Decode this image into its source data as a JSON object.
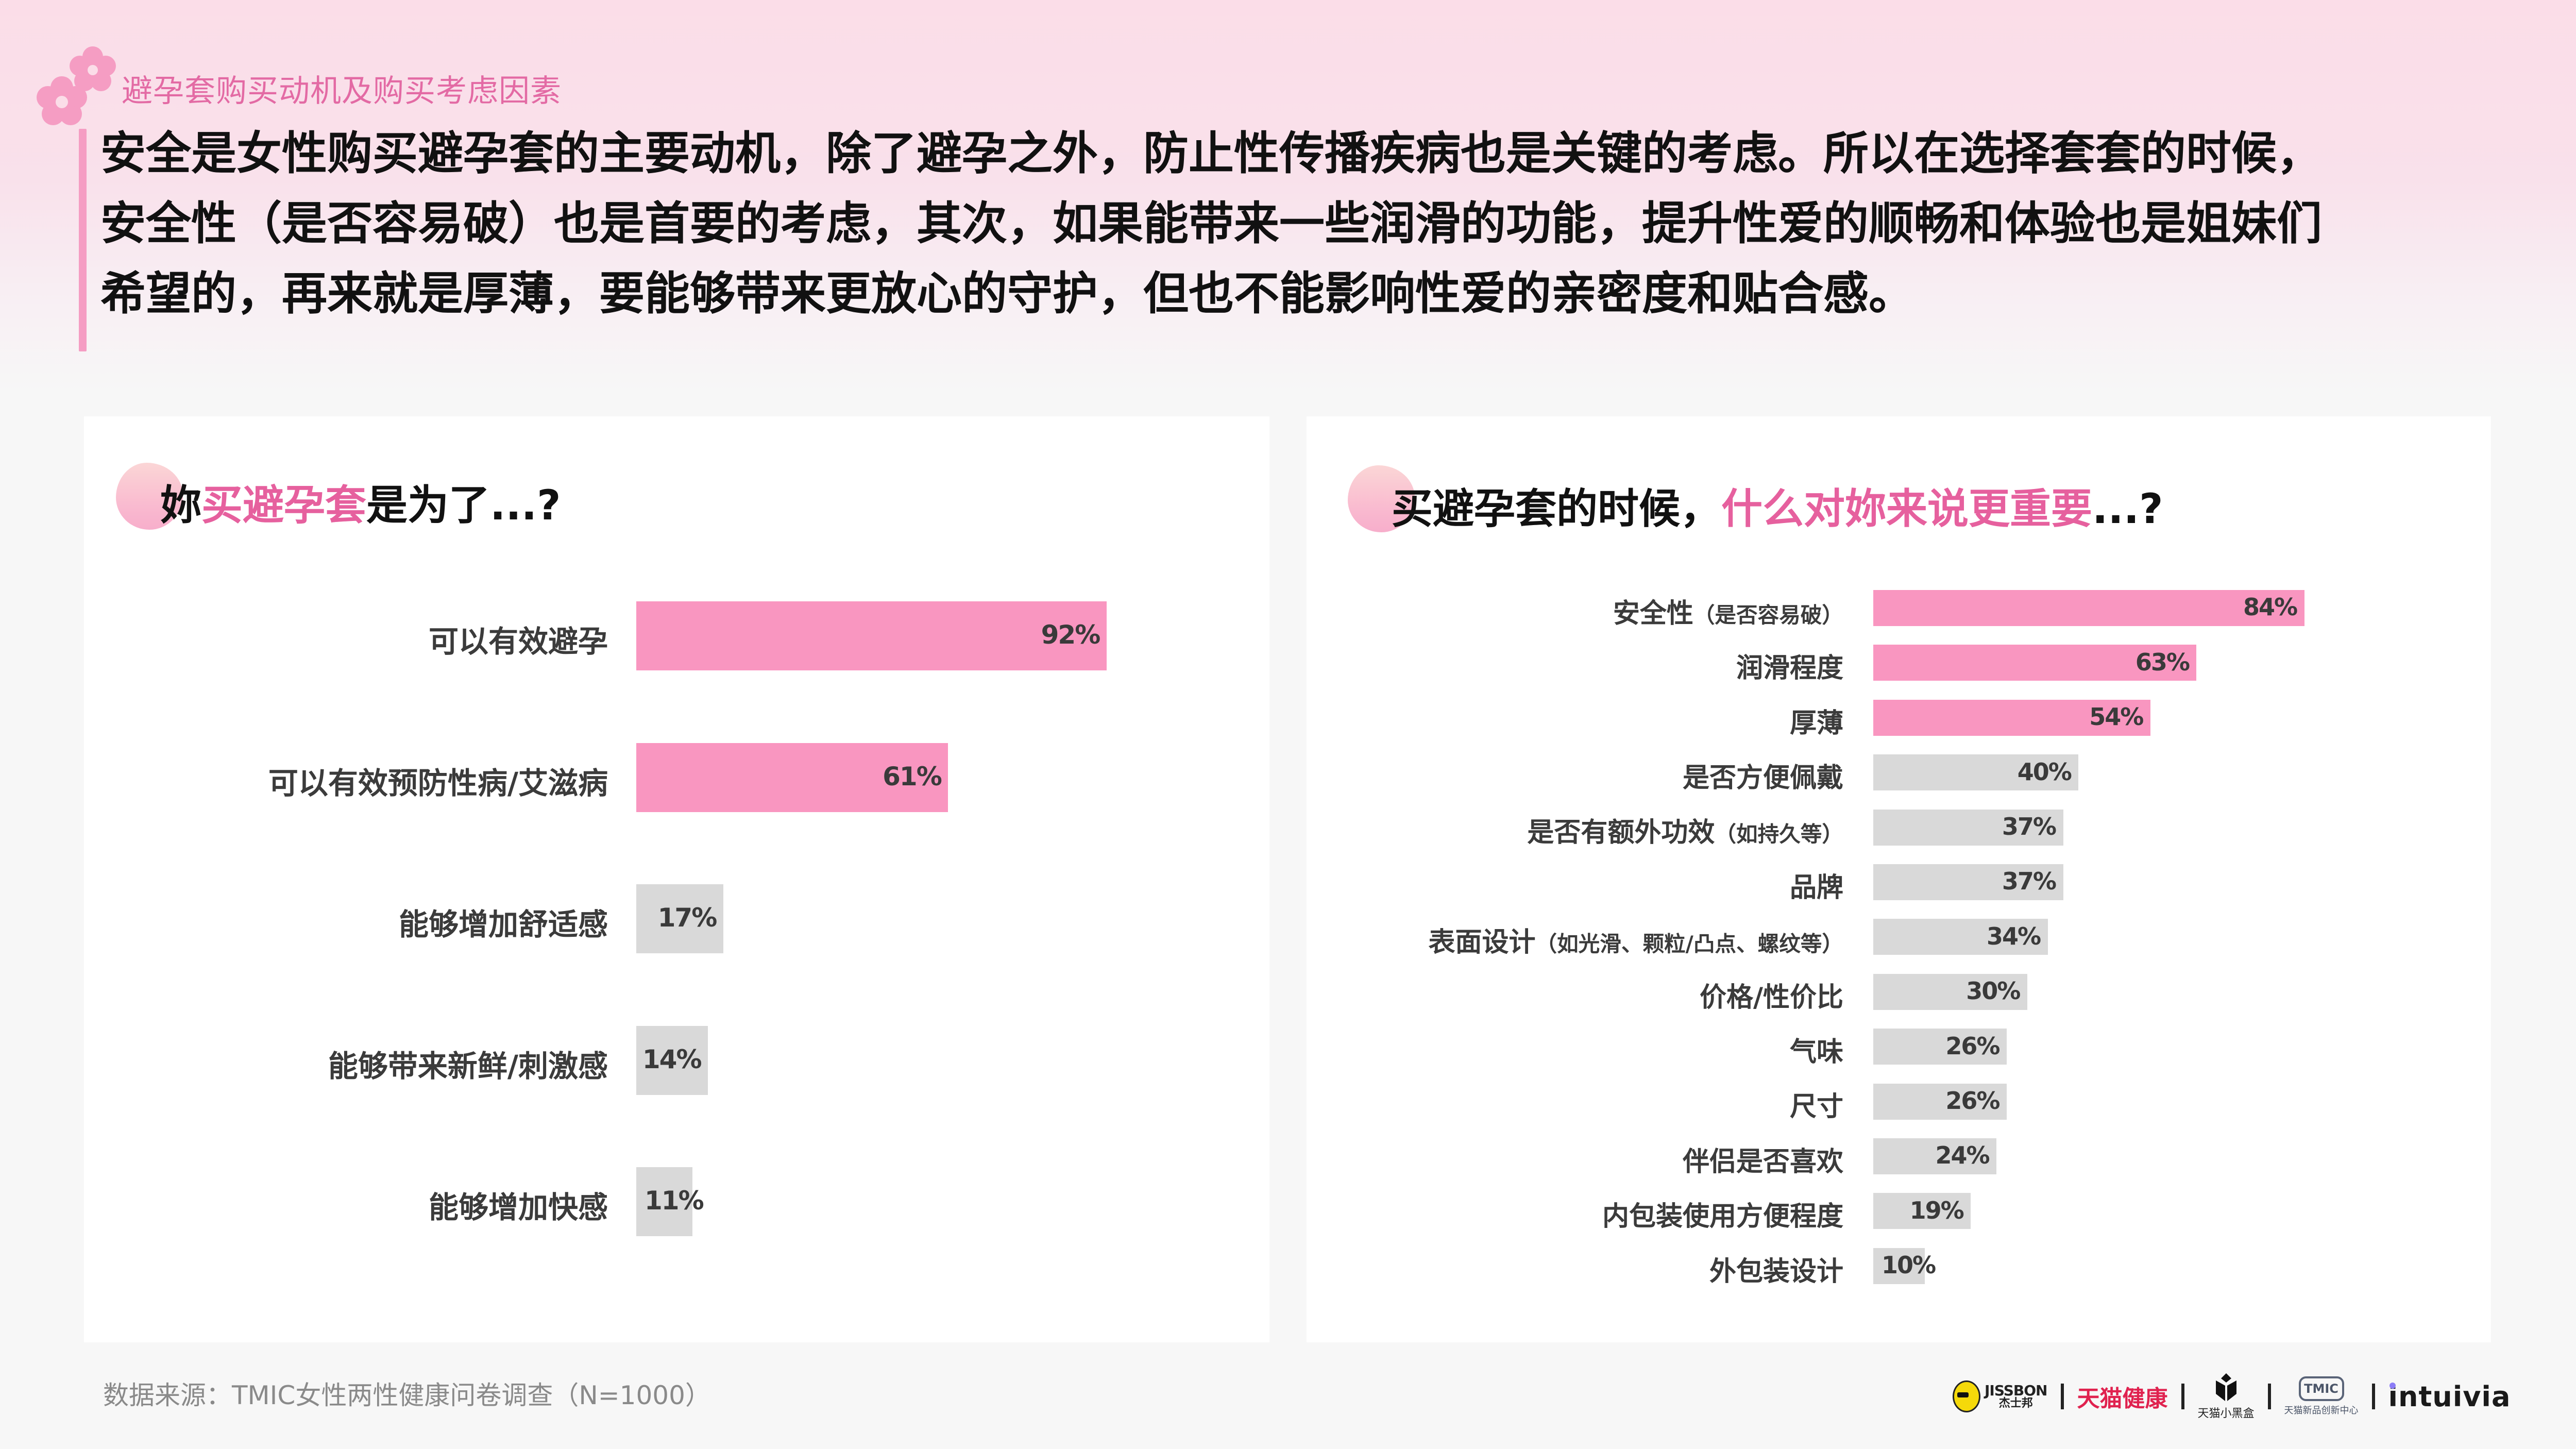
{
  "header": {
    "section_label": "避孕套购买动机及购买考虑因素",
    "headline_lines": [
      "安全是女性购买避孕套的主要动机，除了避孕之外，防止性传播疾病也是关键的考虑。所以在选择套套的时候，",
      "安全性（是否容易破）也是首要的考虑，其次，如果能带来一些润滑的功能，提升性爱的顺畅和体验也是姐妹们",
      "希望的，再来就是厚薄，要能够带来更放心的守护，但也不能影响性爱的亲密度和贴合感。"
    ],
    "decor_icon": "pink-flower-icon"
  },
  "left_chart": {
    "title_parts": {
      "pre": "妳",
      "highlight": "买避孕套",
      "post": "是为了...?"
    }
  },
  "right_chart": {
    "title_parts": {
      "pre": "买避孕套的时候，",
      "highlight": "什么对妳来说更重要",
      "post": "...?"
    }
  },
  "footer": {
    "source": "数据来源：TMIC女性两性健康问卷调查（N=1000）",
    "logos": {
      "jissbon_en": "JISSBON",
      "jissbon_cn": "杰士邦",
      "tmall_health": "天猫健康",
      "tmall_blackbox": "天猫小黑盒",
      "tmic_badge": "TMIC",
      "tmic_text": "天猫新品创新中心",
      "intuivia": "intuivia"
    }
  },
  "colors": {
    "highlight_pink": "#e6609e",
    "bar_pink": "#f996c0",
    "bar_gray": "#d9d9d9",
    "label_text": "#3b3b3b",
    "section_label_pink": "#e36aa4"
  },
  "chart_data": [
    {
      "type": "bar",
      "orientation": "horizontal",
      "title": "妳买避孕套是为了...?",
      "categories": [
        "可以有效避孕",
        "可以有效预防性病/艾滋病",
        "能够增加舒适感",
        "能够带来新鲜/刺激感",
        "能够增加快感"
      ],
      "values": [
        92,
        61,
        17,
        14,
        11
      ],
      "value_labels": [
        "92%",
        "61%",
        "17%",
        "14%",
        "11%"
      ],
      "highlight": [
        true,
        true,
        false,
        false,
        false
      ],
      "unit": "%",
      "xlim": [
        0,
        100
      ],
      "grid": false,
      "legend": null
    },
    {
      "type": "bar",
      "orientation": "horizontal",
      "title": "买避孕套的时候，什么对妳来说更重要...?",
      "categories": [
        "安全性（是否容易破）",
        "润滑程度",
        "厚薄",
        "是否方便佩戴",
        "是否有额外功效（如持久等）",
        "品牌",
        "表面设计（如光滑、颗粒/凸点、螺纹等）",
        "价格/性价比",
        "气味",
        "尺寸",
        "伴侣是否喜欢",
        "内包装使用方便程度",
        "外包装设计"
      ],
      "values": [
        84,
        63,
        54,
        40,
        37,
        37,
        34,
        30,
        26,
        26,
        24,
        19,
        10
      ],
      "value_labels": [
        "84%",
        "63%",
        "54%",
        "40%",
        "37%",
        "37%",
        "34%",
        "30%",
        "26%",
        "26%",
        "24%",
        "19%",
        "10%"
      ],
      "highlight": [
        true,
        true,
        true,
        false,
        false,
        false,
        false,
        false,
        false,
        false,
        false,
        false,
        false
      ],
      "unit": "%",
      "xlim": [
        0,
        100
      ],
      "grid": false,
      "legend": null
    }
  ]
}
